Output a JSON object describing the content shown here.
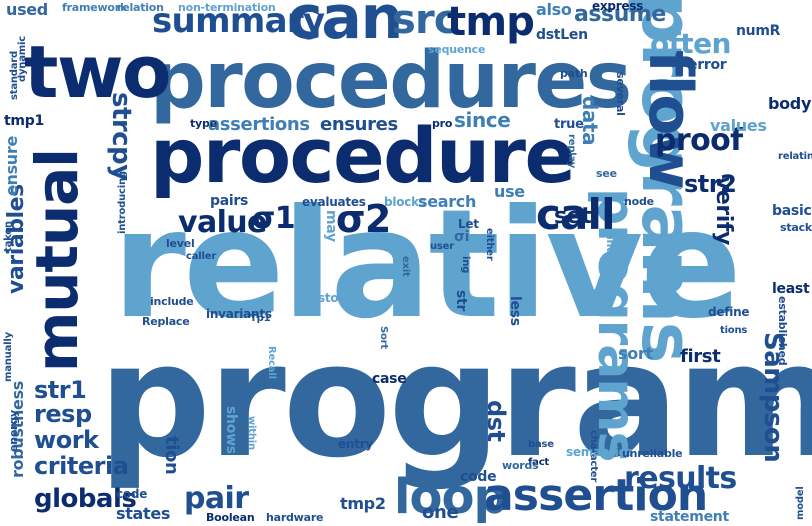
{
  "words": {
    "relative": "relative",
    "program": "program",
    "procedures": "procedures",
    "procedure": "procedure",
    "programs": "programs",
    "two": "two",
    "can": "can",
    "mutual": "mutual",
    "summary": "summary",
    "src": "src",
    "tmp": "tmp",
    "flow": "flow",
    "call": "call",
    "loop": "loop",
    "assertion": "assertion",
    "used": "used",
    "framework": "framework",
    "relation": "relation",
    "non_termination": "non-termination",
    "also": "also",
    "express": "express",
    "assume": "assume",
    "numR": "numR",
    "often": "often",
    "sequence": "sequence",
    "dstLen": "dstLen",
    "error": "error",
    "several": "several",
    "path": "path",
    "dynamic": "dynamic",
    "standard": "standard",
    "tmp1": "tmp1",
    "type": "type",
    "assertions": "assertions",
    "ensures": "ensures",
    "pro": "pro",
    "since": "since",
    "true": "true",
    "data": "data",
    "body": "body",
    "values": "values",
    "strcpy": "strcpy",
    "ensure": "ensure",
    "relating": "relating",
    "proof": "proof",
    "str2": "str2",
    "taken": "taken",
    "introducing": "introducing",
    "replay": "replay",
    "use": "use",
    "value": "value",
    "sigma1": "σ1",
    "sigma2": "σ2",
    "pairs": "pairs",
    "evaluates": "evaluates",
    "blocks": "blocks",
    "search": "search",
    "node": "node",
    "see": "see",
    "set": "set",
    "verify": "verify",
    "basic": "basic",
    "stack": "stack",
    "variables": "variables",
    "level": "level",
    "may": "may",
    "let": "Let",
    "sigma": "σi",
    "caller": "caller",
    "user": "user",
    "either": "either",
    "index": "index",
    "ing": "ing",
    "exit": "exit",
    "include": "include",
    "store": "store",
    "str": "str",
    "less": "less",
    "least": "least",
    "replace": "Replace",
    "invariants": "invariants",
    "tp1": "Tp1",
    "define": "define",
    "established": "established",
    "manually": "manually",
    "sort_cap": "Sort",
    "tions": "tions",
    "recall": "Recall",
    "sort": "sort",
    "first": "first",
    "robustness": "robustness",
    "str1": "str1",
    "resp": "resp",
    "case": "case",
    "sampson": "Sampson",
    "energy": "energy",
    "work": "work",
    "shows": "shows",
    "within": "within",
    "character": "character",
    "dst": "dst",
    "criteria": "criteria",
    "tion": "tion",
    "entry": "entry",
    "fact": "fact",
    "base": "base",
    "semantics": "semantics",
    "unreliable": "unreliable",
    "results": "results",
    "globals": "globals",
    "pair": "pair",
    "code": "code",
    "words": "words",
    "states": "states",
    "boolean": "Boolean",
    "hardware": "hardware",
    "tmp2": "tmp2",
    "one": "one",
    "statement": "statement",
    "model": "model"
  },
  "colors": {
    "darkest": "#0b2c6e",
    "dark": "#1f4e91",
    "mid": "#33689e",
    "steel": "#3f7fb5",
    "light": "#5fa3cf",
    "pale": "#8dbfe0"
  }
}
